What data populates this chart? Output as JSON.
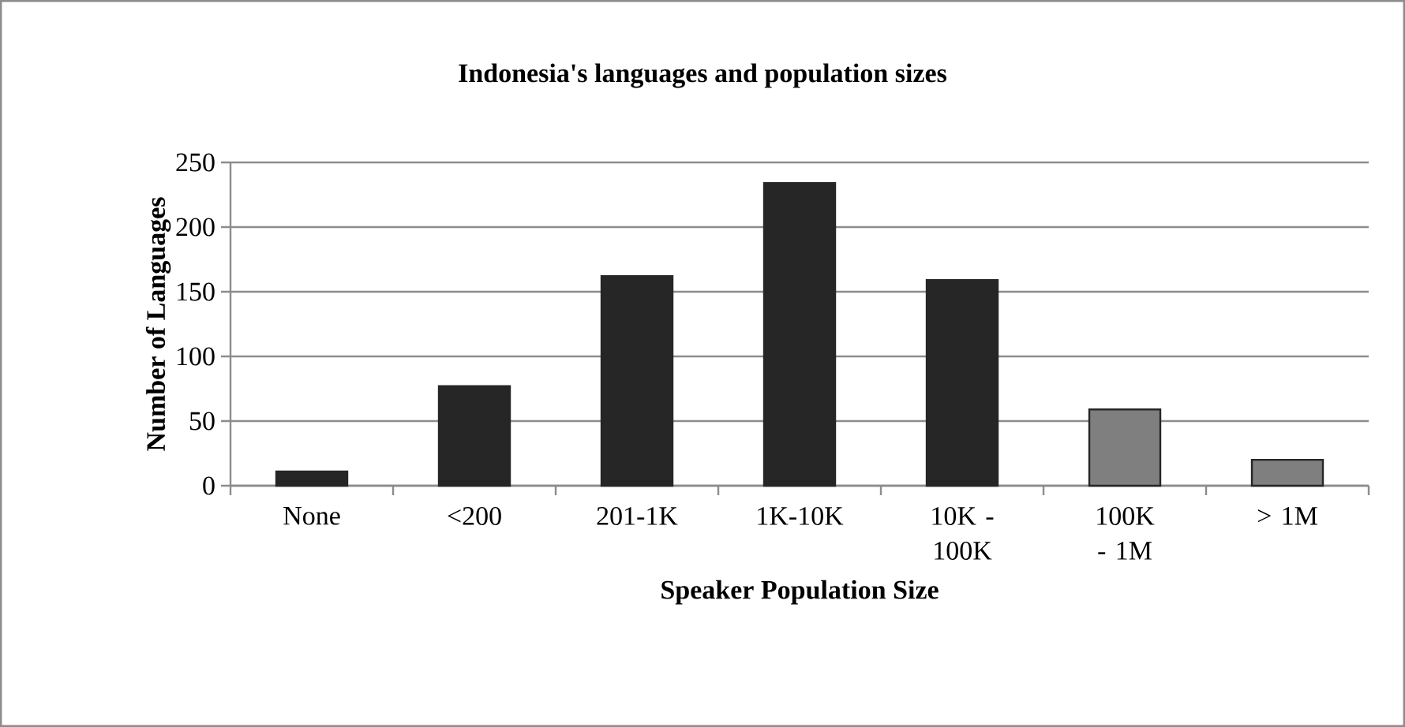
{
  "chart_data": {
    "type": "bar",
    "title": "Indonesia's languages and population sizes",
    "xlabel": "Speaker Population Size",
    "ylabel": "Number of Languages",
    "categories": [
      "None",
      "<200",
      "201-1K",
      "1K-10K",
      "10K - 100K",
      "100K - 1M",
      "> 1M"
    ],
    "values": [
      11,
      77,
      162,
      234,
      159,
      59,
      20
    ],
    "colors": [
      "#262626",
      "#262626",
      "#262626",
      "#262626",
      "#262626",
      "#7f7f7f",
      "#7f7f7f"
    ],
    "ylim": [
      0,
      250
    ],
    "yticks": [
      0,
      50,
      100,
      150,
      200,
      250
    ],
    "grid": "y"
  }
}
